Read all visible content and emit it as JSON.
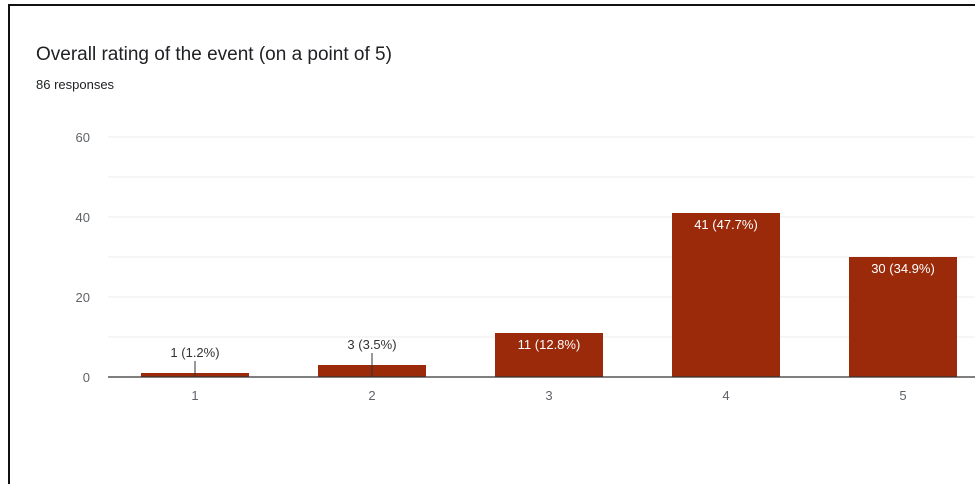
{
  "header": {
    "title": "Overall rating of the event (on a point of 5)",
    "subtitle": "86 responses"
  },
  "colors": {
    "bar": "#9a2a0a",
    "grid": "#ececec",
    "axis": "#333333",
    "label_inside": "#ffffff",
    "label_outside": "#333333"
  },
  "chart_data": {
    "type": "bar",
    "categories": [
      "1",
      "2",
      "3",
      "4",
      "5"
    ],
    "values": [
      1,
      3,
      11,
      41,
      30
    ],
    "data_labels": [
      "1 (1.2%)",
      "3 (3.5%)",
      "11 (12.8%)",
      "41 (47.7%)",
      "30 (34.9%)"
    ],
    "yticks": [
      0,
      20,
      40,
      60
    ],
    "ylim": [
      0,
      60
    ],
    "grid": true,
    "title": "Overall rating of the event (on a point of 5)",
    "subtitle": "86 responses"
  }
}
